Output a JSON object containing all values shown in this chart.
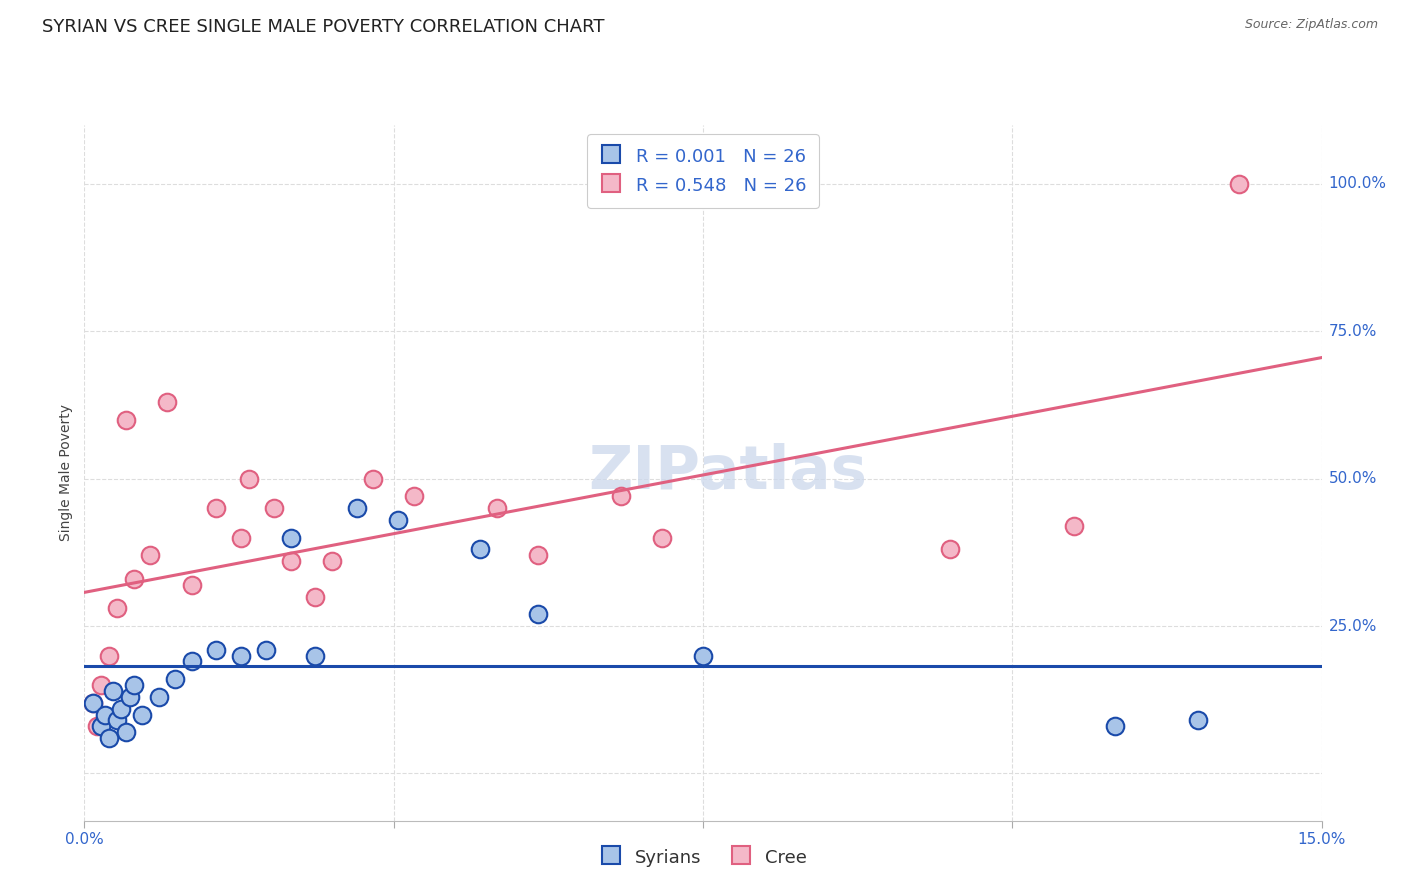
{
  "title": "SYRIAN VS CREE SINGLE MALE POVERTY CORRELATION CHART",
  "source": "Source: ZipAtlas.com",
  "ylabel": "Single Male Poverty",
  "watermark": "ZIPatlas",
  "syrians_color": "#a8c4e8",
  "cree_color": "#f4b8c8",
  "syrians_line_color": "#1a4aaa",
  "cree_line_color": "#e06080",
  "legend_R_syrians": "0.001",
  "legend_N_syrians": "26",
  "legend_R_cree": "0.548",
  "legend_N_cree": "26",
  "legend_label_syrians": "Syrians",
  "legend_label_cree": "Cree",
  "xmin": 0.0,
  "xmax": 15.0,
  "ymin": -8.0,
  "ymax": 110.0,
  "syrians_x": [
    0.1,
    0.2,
    0.25,
    0.3,
    0.35,
    0.4,
    0.45,
    0.5,
    0.55,
    0.6,
    0.7,
    0.9,
    1.1,
    1.3,
    1.6,
    1.9,
    2.2,
    2.5,
    2.8,
    3.3,
    3.8,
    4.8,
    5.5,
    7.5,
    12.5,
    13.5
  ],
  "syrians_y": [
    12.0,
    8.0,
    10.0,
    6.0,
    14.0,
    9.0,
    11.0,
    7.0,
    13.0,
    15.0,
    10.0,
    13.0,
    16.0,
    19.0,
    21.0,
    20.0,
    21.0,
    40.0,
    20.0,
    45.0,
    43.0,
    38.0,
    27.0,
    20.0,
    8.0,
    9.0
  ],
  "cree_x": [
    0.1,
    0.15,
    0.2,
    0.3,
    0.4,
    0.5,
    0.6,
    0.8,
    1.0,
    1.3,
    1.6,
    1.9,
    2.0,
    2.3,
    2.5,
    2.8,
    3.0,
    3.5,
    4.0,
    5.0,
    5.5,
    6.5,
    7.0,
    10.5,
    12.0,
    14.0
  ],
  "cree_y": [
    12.0,
    8.0,
    15.0,
    20.0,
    28.0,
    60.0,
    33.0,
    37.0,
    63.0,
    32.0,
    45.0,
    40.0,
    50.0,
    45.0,
    36.0,
    30.0,
    36.0,
    50.0,
    47.0,
    45.0,
    37.0,
    47.0,
    40.0,
    38.0,
    42.0,
    100.0
  ],
  "grid_color": "#dddddd",
  "background_color": "#ffffff",
  "title_fontsize": 13,
  "axis_label_fontsize": 10,
  "tick_fontsize": 11,
  "right_tick_color": "#3366cc"
}
